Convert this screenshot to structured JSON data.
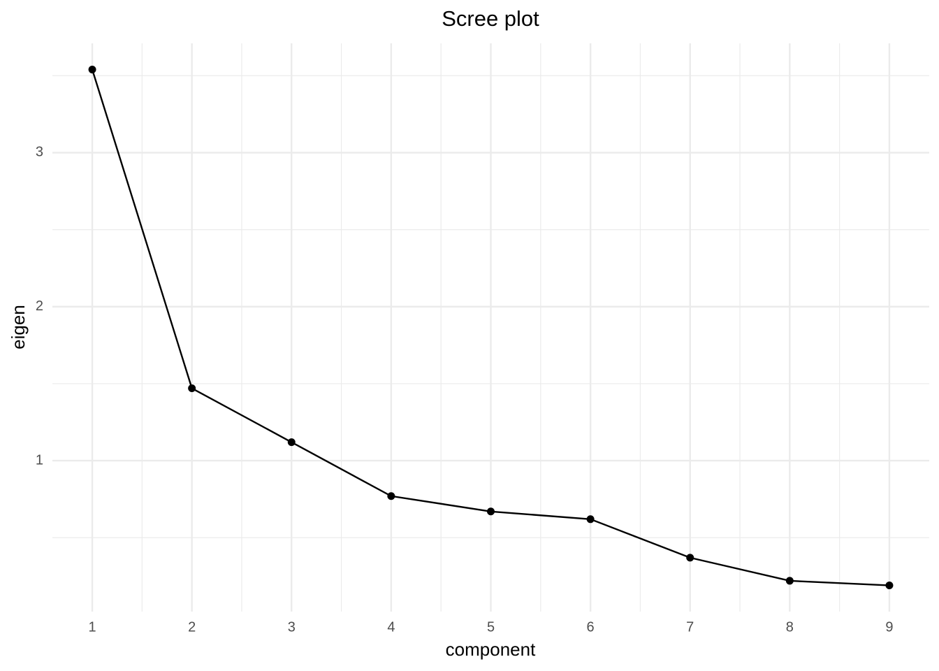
{
  "chart_data": {
    "type": "line",
    "title": "Scree plot",
    "x_label": "component",
    "y_label": "eigen",
    "x": [
      1,
      2,
      3,
      4,
      5,
      6,
      7,
      8,
      9
    ],
    "series": [
      {
        "color": "#000000",
        "values": [
          3.54,
          1.47,
          1.12,
          0.77,
          0.67,
          0.62,
          0.37,
          0.22,
          0.19
        ]
      }
    ],
    "xlim": [
      0.6,
      9.4
    ],
    "ylim": [
      0.02,
      3.71
    ],
    "xticks": [
      1,
      2,
      3,
      4,
      5,
      6,
      7,
      8,
      9
    ],
    "yticks": [
      1,
      2,
      3
    ],
    "x_minor_grid": [
      1.5,
      2.5,
      3.5,
      4.5,
      5.5,
      6.5,
      7.5,
      8.5
    ],
    "y_minor_grid": [
      0.5,
      1.5,
      2.5,
      3.5
    ],
    "grid": true,
    "markers": true
  }
}
